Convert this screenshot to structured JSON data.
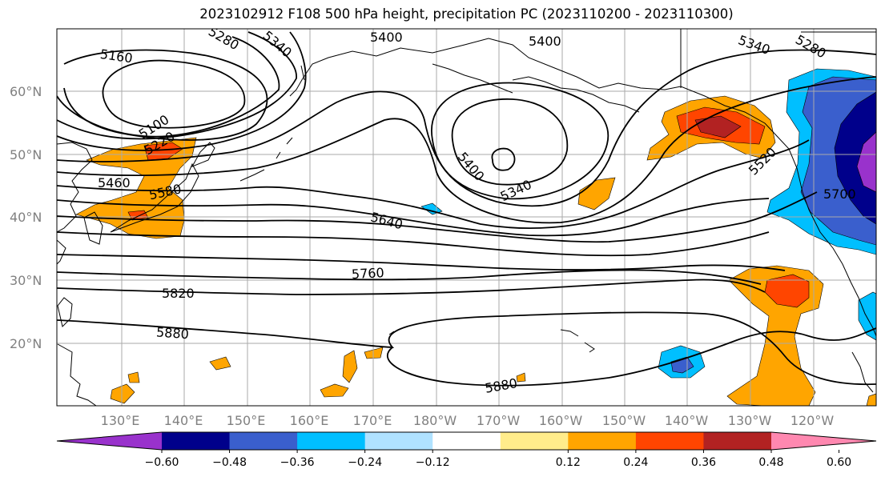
{
  "title": "2023102912 F108 500 hPa height, precipitation PC (2023110200 - 2023110300)",
  "lat_labels": [
    "60°N",
    "50°N",
    "40°N",
    "30°N",
    "20°N"
  ],
  "lon_labels": [
    "130°E",
    "140°E",
    "150°E",
    "160°E",
    "170°E",
    "180°W",
    "170°W",
    "160°W",
    "150°W",
    "140°W",
    "130°W",
    "120°W"
  ],
  "contour_labels": [
    "5160",
    "5100",
    "5220",
    "5280",
    "5340",
    "5400",
    "5400",
    "5340",
    "5400",
    "5460",
    "5580",
    "5640",
    "5760",
    "5820",
    "5880",
    "5880",
    "5340",
    "5280",
    "5520",
    "5700"
  ],
  "colorbar": {
    "colors": [
      "#9932cc",
      "#00008b",
      "#3a5fcd",
      "#00bfff",
      "#b0e2ff",
      "#ffffff",
      "#ffec8b",
      "#ffa500",
      "#ff4500",
      "#b22222",
      "#ff88b0"
    ],
    "ticks": [
      "−0.60",
      "−0.48",
      "−0.36",
      "−0.24",
      "−0.12",
      "0.12",
      "0.24",
      "0.36",
      "0.48",
      "0.60"
    ]
  }
}
